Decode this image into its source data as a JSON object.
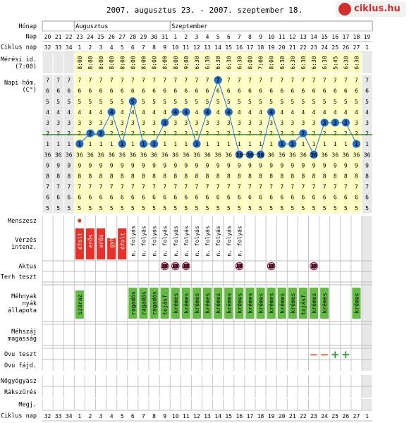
{
  "title": "2007. augusztus 23. - 2007. szeptember 18.",
  "logo": {
    "text": "ciklus.hu",
    "icon": "eye-logo-icon"
  },
  "row_labels": {
    "honap": "Hónap",
    "nap": "Nap",
    "ciklus_nap": "Ciklus nap",
    "meresi_id": [
      "Mérési id.",
      "(7:00)"
    ],
    "napi_hom": [
      "Napi hőm.",
      "(C°)"
    ],
    "menszesz": "Menszesz",
    "verzes": [
      "Vérzés",
      "intenz."
    ],
    "aktus": "Aktus",
    "terh_teszt": "Terh teszt",
    "mehnyak": [
      "Méhnyak",
      "nyák",
      "állapota"
    ],
    "mehszaj": [
      "Méhszáj",
      "magasság"
    ],
    "ovu_teszt": "Ovu teszt",
    "ovu_fajd": "Ovu fájd.",
    "nogyogyasz": "Nőgyógyász",
    "rakszures": "Rákszűrés",
    "megj": "Megj.",
    "ciklus_nap_bottom": "Ciklus nap"
  },
  "months": [
    {
      "label": "Augusztus",
      "start": 3
    },
    {
      "label": "Szeptember",
      "start": 12
    }
  ],
  "colors": {
    "yellow": "#ffffc0",
    "gray": "#e8e8e8",
    "coverline": "#2e8b2e",
    "circle": "#1e6fc8",
    "red": "#e8302a",
    "green": "#66bb44",
    "aktus": "#8a1a4a"
  },
  "chart_data": {
    "type": "line",
    "days": [
      "20",
      "21",
      "22",
      "23",
      "24",
      "25",
      "26",
      "27",
      "28",
      "29",
      "30",
      "31",
      "1",
      "2",
      "3",
      "4",
      "5",
      "6",
      "7",
      "8",
      "9",
      "10",
      "11",
      "12",
      "13",
      "14",
      "15",
      "16",
      "17",
      "18",
      "19"
    ],
    "cycle_days": [
      "32",
      "33",
      "34",
      "1",
      "2",
      "3",
      "4",
      "5",
      "6",
      "7",
      "8",
      "9",
      "10",
      "11",
      "12",
      "13",
      "14",
      "15",
      "16",
      "17",
      "18",
      "19",
      "20",
      "21",
      "22",
      "23",
      "24",
      "25",
      "26",
      "27",
      "1"
    ],
    "cycle_days_bottom": [
      "32",
      "33",
      "34",
      "1",
      "2",
      "3",
      "4",
      "5",
      "6",
      "7",
      "8",
      "9",
      "10",
      "11",
      "12",
      "13",
      "14",
      "15",
      "16",
      "17",
      "18",
      "19",
      "20",
      "21",
      "22",
      "23",
      "24",
      "25",
      "26",
      "27",
      "1"
    ],
    "measure_times": [
      "",
      "",
      "",
      "8:00",
      "8:00",
      "8:00",
      "8:00",
      "8:00",
      "8:00",
      "8:00",
      "8:00",
      "8:00",
      "8:00",
      "9:00",
      "6:30",
      "6:30",
      "6:30",
      "6:30",
      "6:30",
      "8:00",
      "7:00",
      "8:00",
      "6:30",
      "6:30",
      "6:30",
      "6:30",
      "6:30",
      "5:45",
      "6:30",
      "6:30",
      ""
    ],
    "grid_labels": [
      "7",
      "6",
      "5",
      "4",
      "3",
      "2",
      "1",
      "36",
      "9",
      "8",
      "7",
      "6",
      "5"
    ],
    "temps": [
      null,
      null,
      null,
      1,
      2,
      2,
      4,
      1,
      5,
      1,
      1,
      3,
      4,
      4,
      1,
      4,
      7,
      4,
      36,
      36,
      36,
      4,
      1,
      1,
      2,
      36,
      3,
      3,
      3,
      1,
      null
    ],
    "menstruation_day_index": 3,
    "bleeding": [
      null,
      null,
      null,
      "erős",
      "erős",
      "erős",
      "gyenge",
      "erős",
      null,
      null,
      null,
      null,
      null,
      null,
      null,
      null,
      null,
      null,
      null,
      null,
      null,
      null,
      null,
      null,
      null,
      null,
      null,
      null,
      null,
      null,
      null
    ],
    "bleeding_text": [
      null,
      null,
      null,
      "ref.ófolt",
      "ref.erős",
      "ref.erős",
      "ref.gyhe",
      "ref.ófolt",
      "n. folyás",
      "n. folyás",
      "n. folyás",
      "n. folyás",
      "n. folyás",
      "n. folyás",
      "n. folyás",
      "n. folyás",
      "n. folyás",
      "n. folyás",
      "n. folyás",
      null,
      null,
      null,
      null,
      null,
      null,
      null,
      null,
      null,
      null,
      null,
      null
    ],
    "aktus": [
      null,
      null,
      null,
      null,
      null,
      null,
      null,
      null,
      null,
      null,
      null,
      "18",
      "18",
      "18",
      null,
      null,
      null,
      null,
      "18",
      null,
      null,
      "18",
      null,
      null,
      null,
      "18",
      null,
      null,
      null,
      null,
      null
    ],
    "mucus": [
      null,
      null,
      null,
      "száraz",
      null,
      null,
      null,
      null,
      "ragadós",
      "ragadós",
      "ragadós",
      "tojásf.",
      "krémes",
      "krémes",
      "krémes",
      "krémes",
      "krémes",
      "krémes",
      "krémes",
      "krémes",
      "krémes",
      "krémes",
      "krémes",
      "krémes",
      "tojásf.",
      "krémes",
      "krémes",
      null,
      null,
      "krémes",
      null
    ],
    "ovu_test": [
      null,
      null,
      null,
      null,
      null,
      null,
      null,
      null,
      null,
      null,
      null,
      null,
      null,
      null,
      null,
      null,
      null,
      null,
      null,
      null,
      null,
      null,
      null,
      null,
      null,
      "−",
      "−",
      "+",
      "+",
      null,
      null
    ]
  }
}
